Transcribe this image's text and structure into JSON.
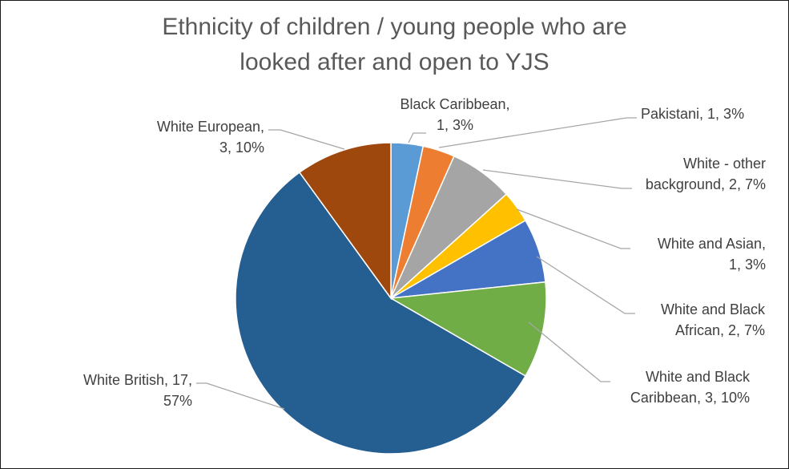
{
  "chart_data": {
    "type": "pie",
    "title": "Ethnicity of children / young people who are looked after and open to YJS",
    "title_lines": [
      "Ethnicity of children / young people who are",
      "looked after and open to YJS"
    ],
    "slices": [
      {
        "name": "Black Caribbean",
        "value": 1,
        "percent": "3%",
        "color": "#5b9bd5",
        "label_lines": [
          "Black Caribbean,",
          "1, 3%"
        ]
      },
      {
        "name": "Pakistani",
        "value": 1,
        "percent": "3%",
        "color": "#ed7d31",
        "label_lines": [
          "Pakistani, 1, 3%"
        ]
      },
      {
        "name": "White - other background",
        "value": 2,
        "percent": "7%",
        "color": "#a5a5a5",
        "label_lines": [
          "White - other",
          "background, 2, 7%"
        ]
      },
      {
        "name": "White and Asian",
        "value": 1,
        "percent": "3%",
        "color": "#ffc000",
        "label_lines": [
          "White and Asian,",
          "1, 3%"
        ]
      },
      {
        "name": "White and Black African",
        "value": 2,
        "percent": "7%",
        "color": "#4472c4",
        "label_lines": [
          "White and Black",
          "African, 2, 7%"
        ]
      },
      {
        "name": "White and Black Caribbean",
        "value": 3,
        "percent": "10%",
        "color": "#70ad47",
        "label_lines": [
          "White and Black",
          "Caribbean, 3, 10%"
        ]
      },
      {
        "name": "White British",
        "value": 17,
        "percent": "57%",
        "color": "#255e91",
        "label_lines": [
          "White British, 17,",
          "57%"
        ]
      },
      {
        "name": "White European",
        "value": 3,
        "percent": "10%",
        "color": "#9e480e",
        "label_lines": [
          "White European,",
          "3, 10%"
        ]
      }
    ],
    "legend": "none"
  }
}
